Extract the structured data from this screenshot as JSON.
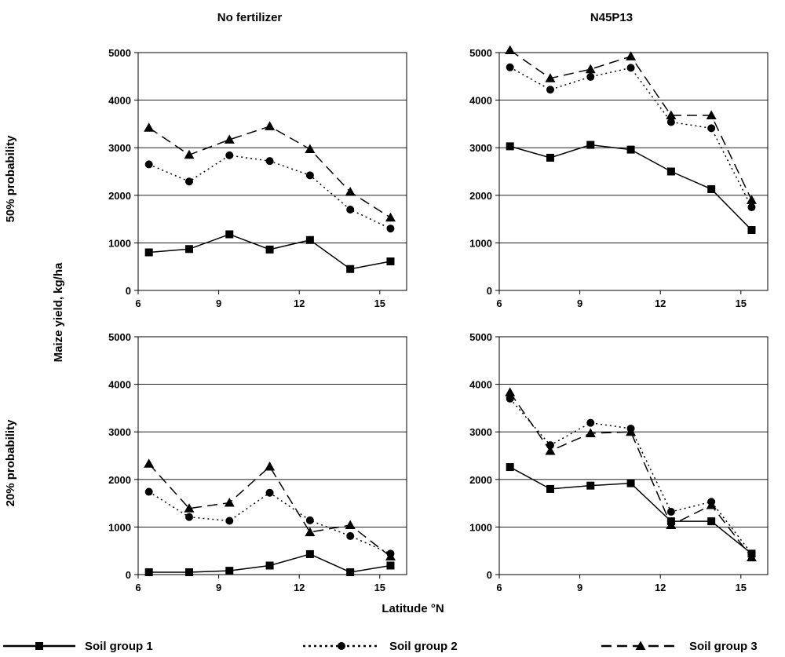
{
  "chart_data": [
    {
      "type": "line",
      "title": "No fertilizer",
      "row_label": "50% probability",
      "x": [
        6.4,
        7.9,
        9.4,
        10.9,
        12.4,
        13.9,
        15.4
      ],
      "xlim": [
        6,
        16
      ],
      "xticks": [
        6,
        9,
        12,
        15
      ],
      "ylim": [
        0,
        5000
      ],
      "yticks": [
        0,
        1000,
        2000,
        3000,
        4000,
        5000
      ],
      "grid": true,
      "series": [
        {
          "name": "Soil group 1",
          "values": [
            800,
            870,
            1180,
            860,
            1060,
            450,
            610
          ]
        },
        {
          "name": "Soil group 2",
          "values": [
            2650,
            2290,
            2840,
            2720,
            2420,
            1700,
            1300
          ]
        },
        {
          "name": "Soil group 3",
          "values": [
            3420,
            2850,
            3170,
            3450,
            2970,
            2070,
            1530
          ]
        }
      ]
    },
    {
      "type": "line",
      "title": "N45P13",
      "row_label": "50% probability",
      "x": [
        6.4,
        7.9,
        9.4,
        10.9,
        12.4,
        13.9,
        15.4
      ],
      "xlim": [
        6,
        16
      ],
      "xticks": [
        6,
        9,
        12,
        15
      ],
      "ylim": [
        0,
        5000
      ],
      "yticks": [
        0,
        1000,
        2000,
        3000,
        4000,
        5000
      ],
      "grid": true,
      "series": [
        {
          "name": "Soil group 1",
          "values": [
            3030,
            2790,
            3060,
            2960,
            2500,
            2130,
            1270
          ]
        },
        {
          "name": "Soil group 2",
          "values": [
            4690,
            4220,
            4490,
            4680,
            3540,
            3410,
            1750
          ]
        },
        {
          "name": "Soil group 3",
          "values": [
            5050,
            4460,
            4650,
            4920,
            3680,
            3680,
            1900
          ]
        }
      ]
    },
    {
      "type": "line",
      "title": "",
      "row_label": "20% probability",
      "x": [
        6.4,
        7.9,
        9.4,
        10.9,
        12.4,
        13.9,
        15.4
      ],
      "xlim": [
        6,
        16
      ],
      "xticks": [
        6,
        9,
        12,
        15
      ],
      "ylim": [
        0,
        5000
      ],
      "yticks": [
        0,
        1000,
        2000,
        3000,
        4000,
        5000
      ],
      "grid": true,
      "series": [
        {
          "name": "Soil group 1",
          "values": [
            50,
            50,
            80,
            190,
            430,
            50,
            190
          ]
        },
        {
          "name": "Soil group 2",
          "values": [
            1740,
            1210,
            1130,
            1720,
            1140,
            810,
            440
          ]
        },
        {
          "name": "Soil group 3",
          "values": [
            2330,
            1390,
            1510,
            2270,
            890,
            1040,
            380
          ]
        }
      ]
    },
    {
      "type": "line",
      "title": "",
      "row_label": "20% probability",
      "x": [
        6.4,
        7.9,
        9.4,
        10.9,
        12.4,
        13.9,
        15.4
      ],
      "xlim": [
        6,
        16
      ],
      "xticks": [
        6,
        9,
        12,
        15
      ],
      "ylim": [
        0,
        5000
      ],
      "yticks": [
        0,
        1000,
        2000,
        3000,
        4000,
        5000
      ],
      "grid": true,
      "series": [
        {
          "name": "Soil group 1",
          "values": [
            2260,
            1800,
            1870,
            1920,
            1120,
            1120,
            440
          ]
        },
        {
          "name": "Soil group 2",
          "values": [
            3700,
            2720,
            3190,
            3070,
            1320,
            1530,
            440
          ]
        },
        {
          "name": "Soil group 3",
          "values": [
            3830,
            2600,
            2970,
            3000,
            1040,
            1460,
            360
          ]
        }
      ]
    }
  ],
  "labels": {
    "col_left": "No fertilizer",
    "col_right": "N45P13",
    "row_top": "50% probability",
    "row_bottom": "20% probability",
    "ylabel": "Maize yield, kg/ha",
    "xlabel": "Latitude °N"
  },
  "legend": [
    {
      "name": "Soil group 1",
      "style": "solid",
      "marker": "square"
    },
    {
      "name": "Soil group 2",
      "style": "dotted",
      "marker": "circle"
    },
    {
      "name": "Soil group 3",
      "style": "dashed",
      "marker": "triangle"
    }
  ],
  "colors": {
    "line": "#000000",
    "grid": "#000000",
    "background": "#ffffff"
  }
}
